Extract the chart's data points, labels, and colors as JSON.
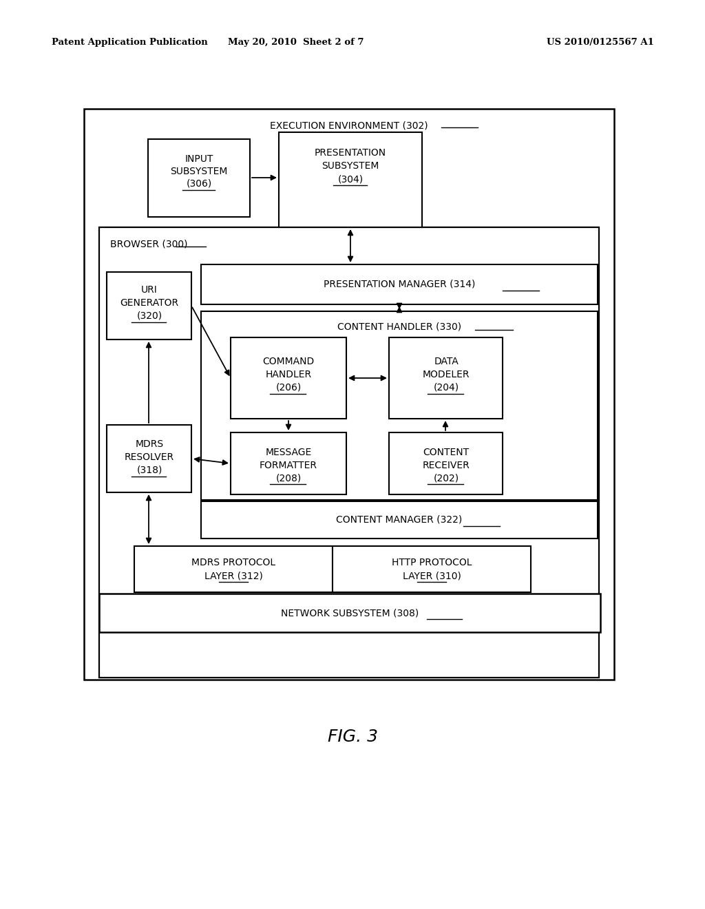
{
  "bg_color": "#ffffff",
  "header_left": "Patent Application Publication",
  "header_mid": "May 20, 2010  Sheet 2 of 7",
  "header_right": "US 2010/0125567 A1",
  "fig_label": "FIG. 3"
}
